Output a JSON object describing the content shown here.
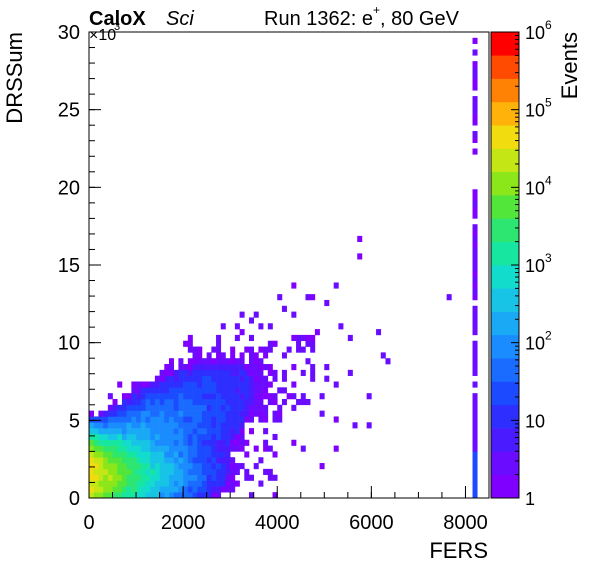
{
  "chart_data": {
    "type": "heatmap",
    "title_bold": "CaloX",
    "title_italic": "Sci",
    "run_label": "Run 1362: e",
    "run_sup": "+",
    "run_suffix": ", 80 GeV",
    "xlabel": "FERS",
    "ylabel": "DRSSum",
    "zlabel": "Events",
    "y_multiplier": "×10",
    "y_multiplier_exp": "3",
    "xlim": [
      0,
      8500
    ],
    "ylim": [
      0,
      30000
    ],
    "z_scale": "log",
    "zlim": [
      1,
      1000000
    ],
    "x_ticks": [
      {
        "value": 0,
        "label": "0"
      },
      {
        "value": 2000,
        "label": "2000"
      },
      {
        "value": 4000,
        "label": "4000"
      },
      {
        "value": 6000,
        "label": "6000"
      },
      {
        "value": 8000,
        "label": "8000"
      }
    ],
    "y_ticks": [
      {
        "value": 0,
        "label": "0"
      },
      {
        "value": 5000,
        "label": "5"
      },
      {
        "value": 10000,
        "label": "10"
      },
      {
        "value": 15000,
        "label": "15"
      },
      {
        "value": 20000,
        "label": "20"
      },
      {
        "value": 25000,
        "label": "25"
      },
      {
        "value": 30000,
        "label": "30"
      }
    ],
    "z_ticks": [
      {
        "value": 1,
        "label": "1"
      },
      {
        "value": 10,
        "label": "10"
      },
      {
        "value": 100,
        "label": "10",
        "exp": "2"
      },
      {
        "value": 1000,
        "label": "10",
        "exp": "3"
      },
      {
        "value": 10000,
        "label": "10",
        "exp": "4"
      },
      {
        "value": 100000,
        "label": "10",
        "exp": "5"
      },
      {
        "value": 1000000,
        "label": "10",
        "exp": "6"
      }
    ],
    "density_regions": [
      {
        "x": 200,
        "y": 1500,
        "counts": 50000
      },
      {
        "x": 600,
        "y": 2000,
        "counts": 3000
      },
      {
        "x": 1200,
        "y": 2500,
        "counts": 300
      },
      {
        "x": 2000,
        "y": 3000,
        "counts": 60
      },
      {
        "x": 3000,
        "y": 4500,
        "counts": 15
      },
      {
        "x": 4500,
        "y": 7000,
        "counts": 3
      },
      {
        "x": 6000,
        "y": 10000,
        "counts": 1
      },
      {
        "x": 8200,
        "y": 15000,
        "counts": 2
      },
      {
        "x": 8200,
        "y": 1000,
        "counts": 20
      }
    ]
  }
}
